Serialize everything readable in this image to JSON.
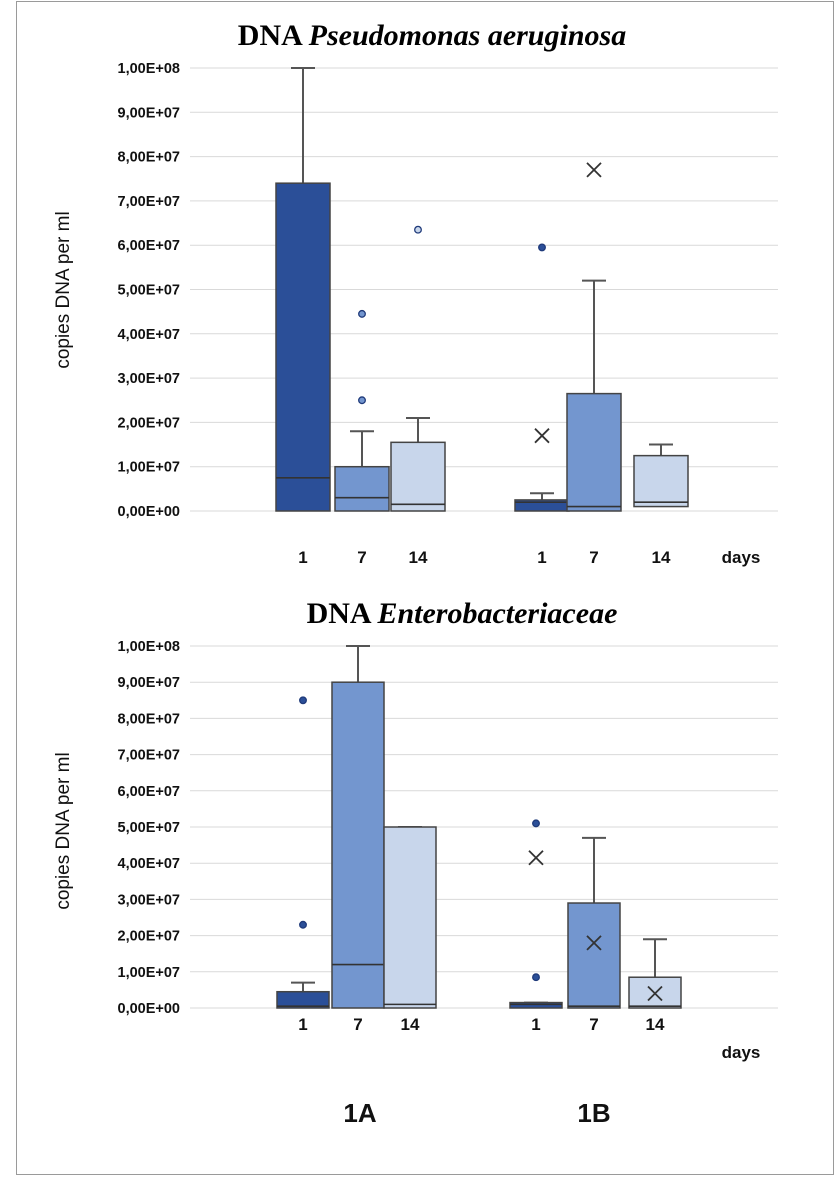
{
  "chart_data": [
    {
      "type": "box",
      "title": {
        "prefix": "DNA ",
        "italic": "Pseudomonas aeruginosa"
      },
      "ylabel": "copies DNA per ml",
      "ylim": [
        0,
        100000000
      ],
      "y_ticks": [
        "0,00E+00",
        "1,00E+07",
        "2,00E+07",
        "3,00E+07",
        "4,00E+07",
        "5,00E+07",
        "6,00E+07",
        "7,00E+07",
        "8,00E+07",
        "9,00E+07",
        "1,00E+08"
      ],
      "x_unit_label": "days",
      "grid": true,
      "groups": [
        {
          "name": "1A",
          "boxes": [
            {
              "day": "1",
              "color": "#2b4f98",
              "q1": 0,
              "median": 7500000,
              "q3": 74000000,
              "whisker_low": 0,
              "whisker_high": 100000000,
              "mean": null,
              "outliers": []
            },
            {
              "day": "7",
              "color": "#7396cf",
              "q1": 0,
              "median": 3000000,
              "q3": 10000000,
              "whisker_low": 0,
              "whisker_high": 18000000,
              "mean": null,
              "outliers": [
                25000000,
                44500000
              ]
            },
            {
              "day": "14",
              "color": "#c8d6eb",
              "q1": 0,
              "median": 1500000,
              "q3": 15500000,
              "whisker_low": 0,
              "whisker_high": 21000000,
              "mean": null,
              "outliers": [
                63500000
              ]
            }
          ]
        },
        {
          "name": "1B",
          "boxes": [
            {
              "day": "1",
              "color": "#2b4f98",
              "q1": 0,
              "median": 2000000,
              "q3": 2500000,
              "whisker_low": 0,
              "whisker_high": 4000000,
              "mean": 17000000,
              "outliers": [
                59500000
              ]
            },
            {
              "day": "7",
              "color": "#7396cf",
              "q1": 0,
              "median": 1000000,
              "q3": 26500000,
              "whisker_low": 0,
              "whisker_high": 52000000,
              "mean": 77000000,
              "outliers": []
            },
            {
              "day": "14",
              "color": "#c8d6eb",
              "q1": 1000000,
              "median": 2000000,
              "q3": 12500000,
              "whisker_low": 0,
              "whisker_high": 15000000,
              "mean": null,
              "outliers": []
            }
          ]
        }
      ]
    },
    {
      "type": "box",
      "title": {
        "prefix": "DNA ",
        "italic": "Enterobacteriaceae"
      },
      "ylabel": "copies DNA per ml",
      "ylim": [
        0,
        100000000
      ],
      "y_ticks": [
        "0,00E+00",
        "1,00E+07",
        "2,00E+07",
        "3,00E+07",
        "4,00E+07",
        "5,00E+07",
        "6,00E+07",
        "7,00E+07",
        "8,00E+07",
        "9,00E+07",
        "1,00E+08"
      ],
      "x_unit_label": "days",
      "grid": true,
      "groups": [
        {
          "name": "1A",
          "boxes": [
            {
              "day": "1",
              "color": "#2b4f98",
              "q1": 0,
              "median": 500000,
              "q3": 4500000,
              "whisker_low": 0,
              "whisker_high": 7000000,
              "mean": null,
              "outliers": [
                23000000,
                85000000
              ]
            },
            {
              "day": "7",
              "color": "#7396cf",
              "q1": 0,
              "median": 12000000,
              "q3": 90000000,
              "whisker_low": 0,
              "whisker_high": 100000000,
              "mean": null,
              "outliers": []
            },
            {
              "day": "14",
              "color": "#c8d6eb",
              "q1": 0,
              "median": 1000000,
              "q3": 50000000,
              "whisker_low": 0,
              "whisker_high": 50000000,
              "mean": null,
              "outliers": []
            }
          ]
        },
        {
          "name": "1B",
          "boxes": [
            {
              "day": "1",
              "color": "#2b4f98",
              "q1": 0,
              "median": 1000000,
              "q3": 1500000,
              "whisker_low": 0,
              "whisker_high": 1500000,
              "mean": 41500000,
              "outliers": [
                8500000,
                51000000
              ]
            },
            {
              "day": "7",
              "color": "#7396cf",
              "q1": 0,
              "median": 500000,
              "q3": 29000000,
              "whisker_low": 0,
              "whisker_high": 47000000,
              "mean": 18000000,
              "outliers": []
            },
            {
              "day": "14",
              "color": "#c8d6eb",
              "q1": 0,
              "median": 500000,
              "q3": 8500000,
              "whisker_low": 0,
              "whisker_high": 19000000,
              "mean": 4000000,
              "outliers": []
            }
          ]
        }
      ]
    }
  ]
}
